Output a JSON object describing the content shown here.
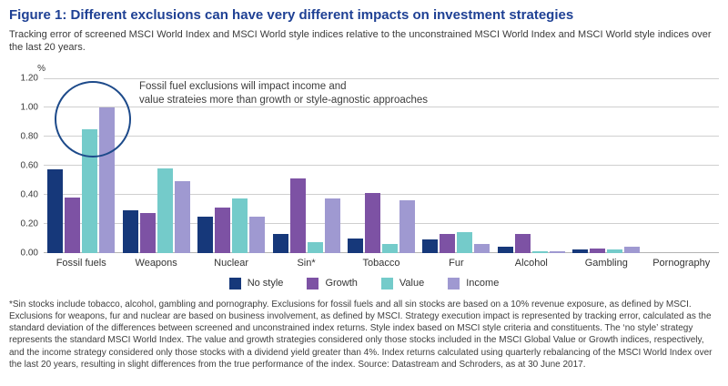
{
  "figure": {
    "title": "Figure 1: Different exclusions can have very different impacts on investment strategies",
    "subtitle": "Tracking error of screened MSCI World Index and MSCI World style indices relative to the unconstrained MSCI World Index and MSCI World style indices over the last 20 years."
  },
  "chart_data": {
    "type": "bar",
    "ylabel": "%",
    "ylim": [
      0,
      1.2
    ],
    "yticks": [
      "1.20",
      "1.00",
      "0.80",
      "0.60",
      "0.40",
      "0.20",
      "0.00"
    ],
    "grid": true,
    "legend_position": "bottom",
    "categories": [
      "Fossil fuels",
      "Weapons",
      "Nuclear",
      "Sin*",
      "Tobacco",
      "Fur",
      "Alcohol",
      "Gambling",
      "Pornography"
    ],
    "series": [
      {
        "name": "No style",
        "color": "#16387a",
        "values": [
          0.57,
          0.29,
          0.25,
          0.13,
          0.1,
          0.09,
          0.04,
          0.02,
          0.0
        ]
      },
      {
        "name": "Growth",
        "color": "#7d52a4",
        "values": [
          0.38,
          0.27,
          0.31,
          0.51,
          0.41,
          0.13,
          0.13,
          0.03,
          0.0
        ]
      },
      {
        "name": "Value",
        "color": "#74cbca",
        "values": [
          0.85,
          0.58,
          0.37,
          0.07,
          0.06,
          0.14,
          0.01,
          0.02,
          0.0
        ]
      },
      {
        "name": "Income",
        "color": "#9f99d1",
        "values": [
          1.0,
          0.49,
          0.25,
          0.37,
          0.36,
          0.06,
          0.01,
          0.04,
          0.0
        ]
      }
    ],
    "annotation": {
      "line1": "Fossil fuel exclusions will impact income and",
      "line2": "value strateies more than growth or style-agnostic approaches",
      "circle_color": "#1d4a8a"
    }
  },
  "footnote": "*Sin stocks include tobacco, alcohol, gambling and pornography. Exclusions for fossil fuels and all sin stocks are based on a 10% revenue exposure, as defined by MSCI. Exclusions for weapons, fur and nuclear are based on business involvement, as defined by MSCI. Strategy execution impact is represented by tracking error, calculated as the standard deviation of the differences between screened and unconstrained index returns. Style index based on MSCI style criteria and constituents. The ‘no style’ strategy represents the standard MSCI World Index. The value and growth strategies considered only those stocks included in the MSCI Global Value or Growth indices, respectively, and the income strategy considered only those stocks with a dividend yield greater than 4%. Index returns calculated using quarterly rebalancing of the MSCI World Index over the last 20 years, resulting in slight differences from the true performance of the index. Source: Datastream and Schroders, as at 30 June 2017."
}
